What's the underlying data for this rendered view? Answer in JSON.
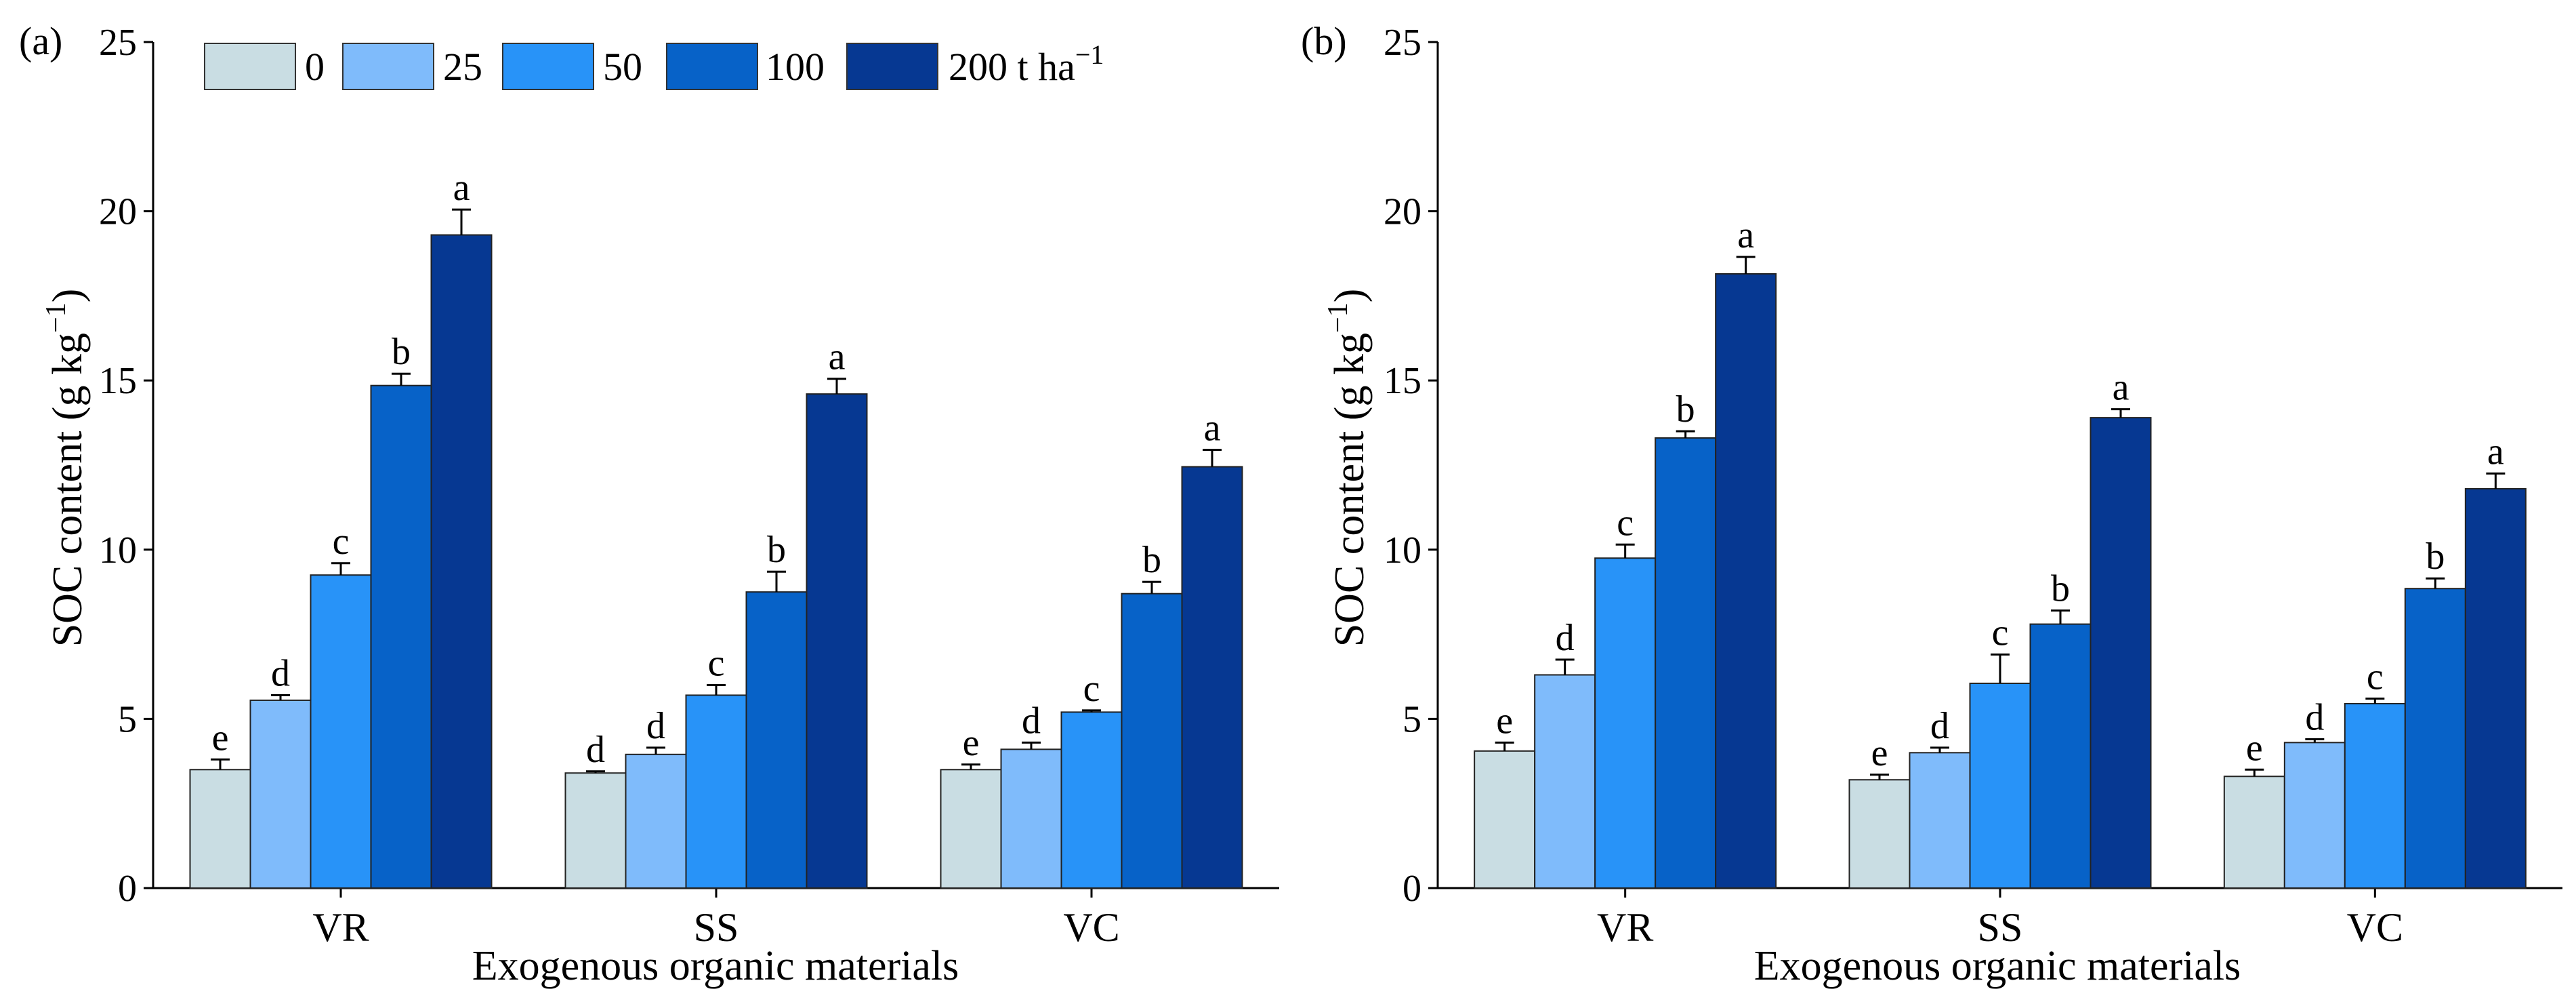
{
  "legend": {
    "entries": [
      "0",
      "25",
      "50",
      "100"
    ],
    "last_prefix": "200 t ha",
    "last_sup": "−1",
    "colors": [
      "#c9dde3",
      "#7fbbfb",
      "#2893f8",
      "#0762c8",
      "#063892"
    ]
  },
  "chart_data": [
    {
      "type": "bar",
      "panel_label": "(a)",
      "categories": [
        "VR",
        "SS",
        "VC"
      ],
      "xlabel": "Exogenous organic materials",
      "ylabel_main": "SOC content (g kg",
      "ylabel_sup": "−1",
      "ylabel_close": ")",
      "ylim": [
        0,
        25
      ],
      "yticks": [
        "0",
        "5",
        "10",
        "15",
        "20",
        "25"
      ],
      "series": [
        {
          "name": "0",
          "values": [
            3.5,
            3.4,
            3.5
          ],
          "errors": [
            0.3,
            0.05,
            0.15
          ],
          "letters": [
            "e",
            "d",
            "e"
          ]
        },
        {
          "name": "25",
          "values": [
            5.55,
            3.95,
            4.1
          ],
          "errors": [
            0.15,
            0.2,
            0.2
          ],
          "letters": [
            "d",
            "d",
            "d"
          ]
        },
        {
          "name": "50",
          "values": [
            9.25,
            5.7,
            5.2
          ],
          "errors": [
            0.35,
            0.3,
            0.05
          ],
          "letters": [
            "c",
            "c",
            "c"
          ]
        },
        {
          "name": "100",
          "values": [
            14.85,
            8.75,
            8.7
          ],
          "errors": [
            0.35,
            0.6,
            0.35
          ],
          "letters": [
            "b",
            "b",
            "b"
          ]
        },
        {
          "name": "200 t ha−1",
          "values": [
            19.3,
            14.6,
            12.45
          ],
          "errors": [
            0.75,
            0.45,
            0.5
          ],
          "letters": [
            "a",
            "a",
            "a"
          ]
        }
      ]
    },
    {
      "type": "bar",
      "panel_label": "(b)",
      "categories": [
        "VR",
        "SS",
        "VC"
      ],
      "xlabel": "Exogenous organic materials",
      "ylabel_main": "SOC content (g kg",
      "ylabel_sup": "−1",
      "ylabel_close": ")",
      "ylim": [
        0,
        25
      ],
      "yticks": [
        "0",
        "5",
        "10",
        "15",
        "20",
        "25"
      ],
      "series": [
        {
          "name": "0",
          "values": [
            4.05,
            3.2,
            3.3
          ],
          "errors": [
            0.25,
            0.15,
            0.2
          ],
          "letters": [
            "e",
            "e",
            "e"
          ]
        },
        {
          "name": "25",
          "values": [
            6.3,
            4.0,
            4.3
          ],
          "errors": [
            0.45,
            0.15,
            0.1
          ],
          "letters": [
            "d",
            "d",
            "d"
          ]
        },
        {
          "name": "50",
          "values": [
            9.75,
            6.05,
            5.45
          ],
          "errors": [
            0.4,
            0.85,
            0.15
          ],
          "letters": [
            "c",
            "c",
            "c"
          ]
        },
        {
          "name": "100",
          "values": [
            13.3,
            7.8,
            8.85
          ],
          "errors": [
            0.2,
            0.4,
            0.3
          ],
          "letters": [
            "b",
            "b",
            "b"
          ]
        },
        {
          "name": "200 t ha−1",
          "values": [
            18.15,
            13.9,
            11.8
          ],
          "errors": [
            0.5,
            0.25,
            0.45
          ],
          "letters": [
            "a",
            "a",
            "a"
          ]
        }
      ]
    }
  ]
}
